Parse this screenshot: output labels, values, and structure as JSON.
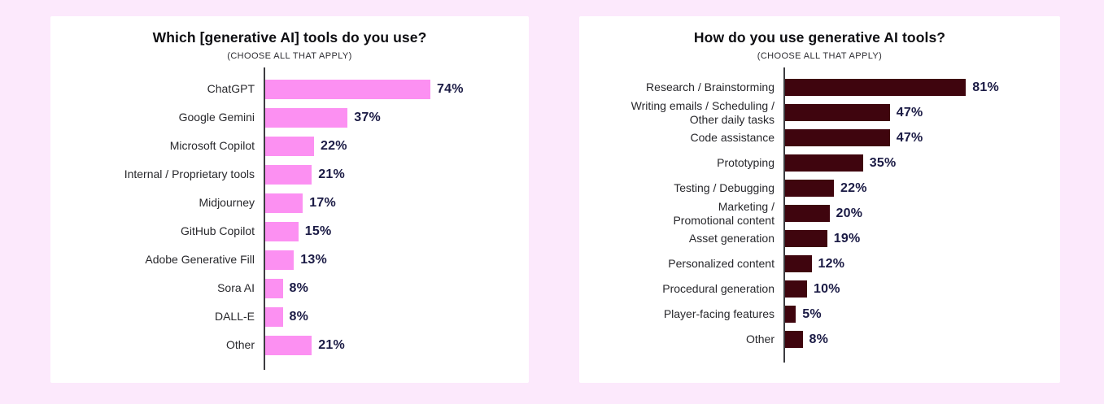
{
  "page": {
    "background_color": "#fce9fc",
    "card_color": "#ffffff",
    "axis_color": "#3c3c40"
  },
  "chart_data": [
    {
      "type": "bar",
      "orientation": "horizontal",
      "title": "Which [generative AI] tools do you use?",
      "subtitle": "(CHOOSE ALL THAT APPLY)",
      "unit": "%",
      "xlim": [
        0,
        100
      ],
      "grid": false,
      "legend": false,
      "bar_color": "#fc90f2",
      "value_label_color": "#1b1b45",
      "categories": [
        "ChatGPT",
        "Google Gemini",
        "Microsoft Copilot",
        "Internal / Proprietary tools",
        "Midjourney",
        "GitHub Copilot",
        "Adobe Generative Fill",
        "Sora AI",
        "DALL-E",
        "Other"
      ],
      "values": [
        74,
        37,
        22,
        21,
        17,
        15,
        13,
        8,
        8,
        21
      ]
    },
    {
      "type": "bar",
      "orientation": "horizontal",
      "title": "How do you use generative AI tools?",
      "subtitle": "(CHOOSE ALL THAT APPLY)",
      "unit": "%",
      "xlim": [
        0,
        100
      ],
      "grid": false,
      "legend": false,
      "bar_color": "#3f050e",
      "value_label_color": "#1b1b45",
      "categories": [
        "Research / Brainstorming",
        "Writing emails / Scheduling /\nOther daily tasks",
        "Code assistance",
        "Prototyping",
        "Testing / Debugging",
        "Marketing /\nPromotional content",
        "Asset generation",
        "Personalized content",
        "Procedural generation",
        "Player-facing features",
        "Other"
      ],
      "values": [
        81,
        47,
        47,
        35,
        22,
        20,
        19,
        12,
        10,
        5,
        8
      ]
    }
  ]
}
